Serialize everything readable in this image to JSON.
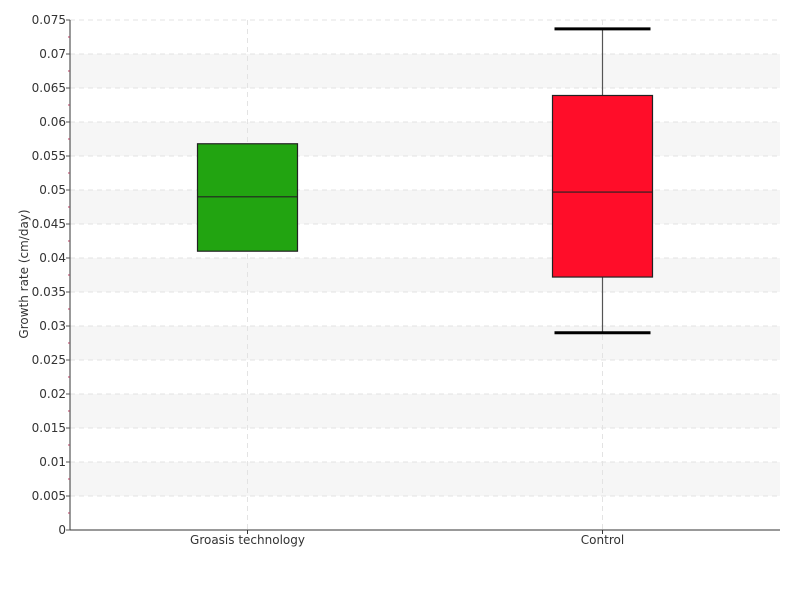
{
  "chart_data": {
    "type": "box",
    "title": "",
    "xlabel": "",
    "ylabel": "Growth rate (cm/day)",
    "ylim": [
      0,
      0.075
    ],
    "ytick_step": 0.005,
    "grid": true,
    "categories": [
      "Groasis technology",
      "Control"
    ],
    "boxes": [
      {
        "name": "Groasis technology",
        "color": "#22a411",
        "min": 0.041,
        "q1": 0.041,
        "median": 0.049,
        "q3": 0.0568,
        "max": 0.0568
      },
      {
        "name": "Control",
        "color": "#ff0d29",
        "min": 0.029,
        "q1": 0.0372,
        "median": 0.0497,
        "q3": 0.0639,
        "max": 0.0737
      }
    ]
  }
}
